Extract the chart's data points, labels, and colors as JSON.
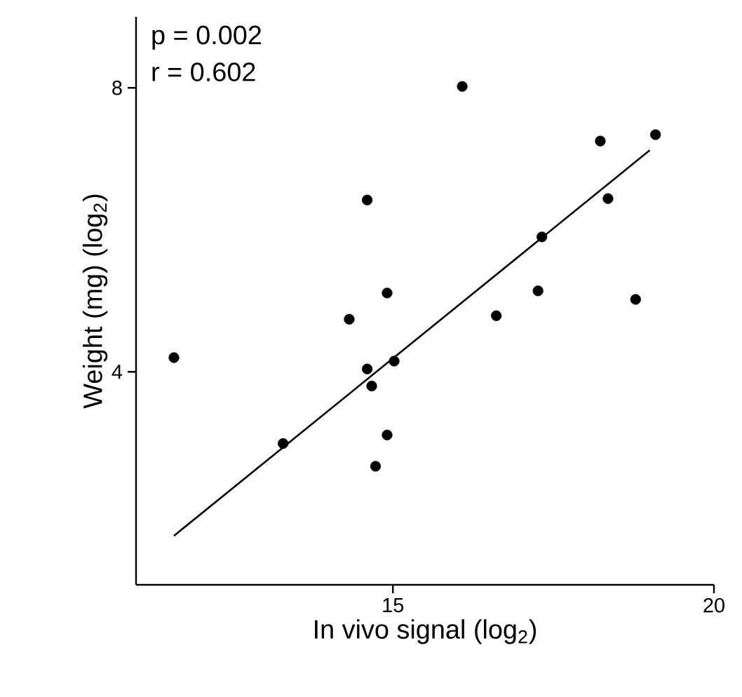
{
  "chart_data": {
    "type": "scatter",
    "xlabel": "In vivo signal (log$_{2}$)",
    "ylabel": "Weight (mg) (log$_{2}$)",
    "annotations": [
      "p = 0.002",
      "r = 0.602"
    ],
    "xlim": [
      11,
      20
    ],
    "ylim": [
      1,
      9
    ],
    "xticks": [
      15,
      20
    ],
    "yticks": [
      4,
      8
    ],
    "grid": false,
    "marker": "circle",
    "series": [
      {
        "color": "#000000",
        "x": [
          16.08,
          18.23,
          19.09,
          14.6,
          18.35,
          17.32,
          14.91,
          17.26,
          18.78,
          16.61,
          14.32,
          11.59,
          14.6,
          15.02,
          14.67,
          13.29,
          14.91,
          14.73
        ],
        "values": [
          8.02,
          7.25,
          7.34,
          6.42,
          6.44,
          5.9,
          5.11,
          5.14,
          5.02,
          4.79,
          4.74,
          4.2,
          4.04,
          4.15,
          3.8,
          2.99,
          3.11,
          2.67
        ]
      },
      {
        "type": "line",
        "color": "#000000",
        "line_style": "solid",
        "marker": "none",
        "x": [
          11.59,
          19.0
        ],
        "values": [
          1.69,
          7.12
        ]
      }
    ]
  }
}
